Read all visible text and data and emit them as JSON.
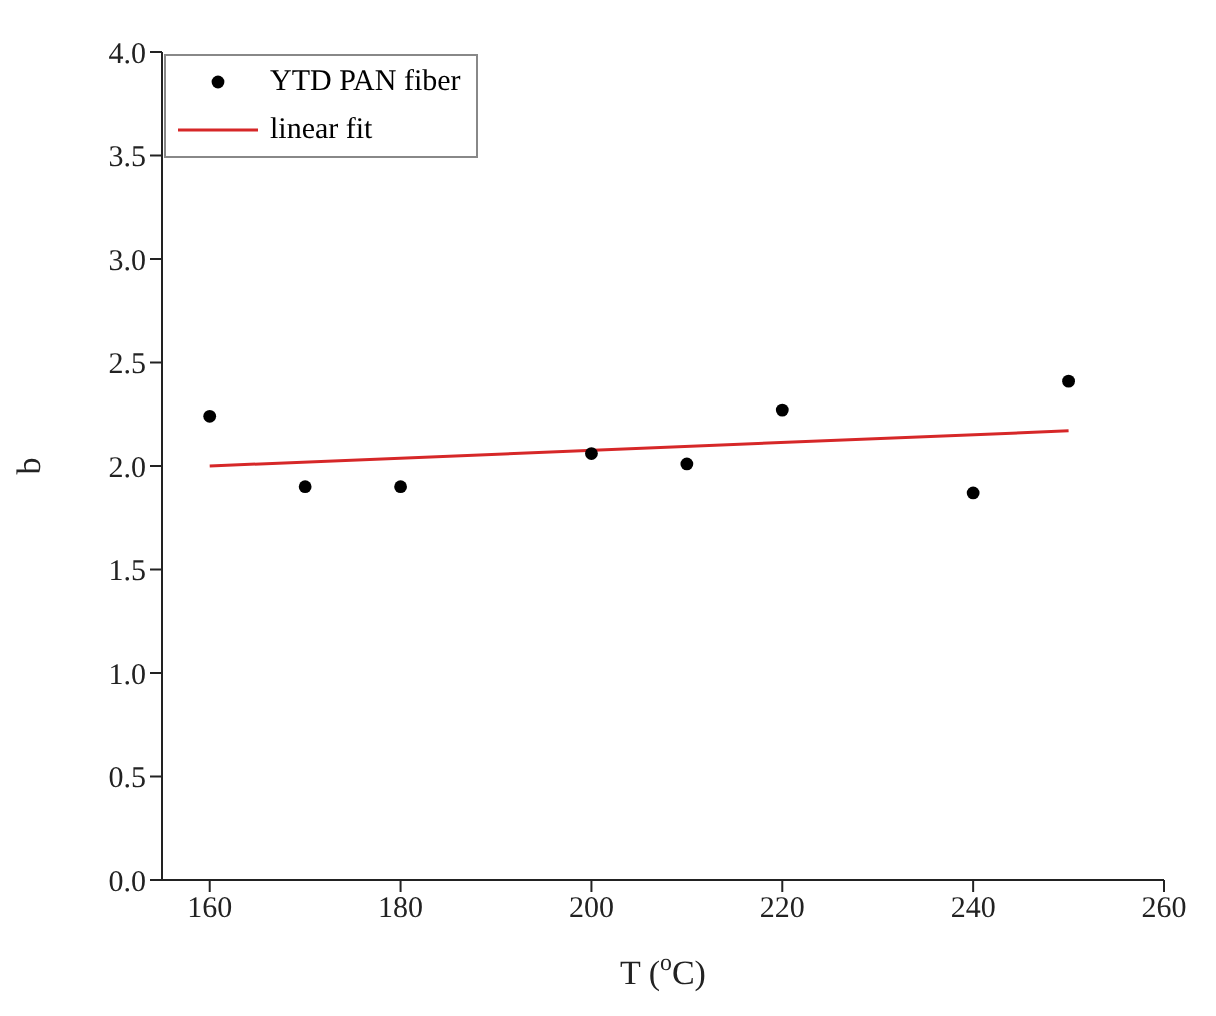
{
  "chart_data": {
    "type": "scatter",
    "xlabel": "T ($^{o}$C)",
    "ylabel": "b",
    "series": [
      {
        "name": "YTD PAN fiber",
        "color": "#000000",
        "marker": "circle",
        "x": [
          160,
          170,
          180,
          200,
          210,
          220,
          240,
          250
        ],
        "values": [
          2.24,
          1.9,
          1.9,
          2.06,
          2.01,
          2.27,
          1.87,
          2.41
        ]
      },
      {
        "name": "linear fit",
        "type": "line",
        "color": "#d62728",
        "line_style": "solid",
        "x": [
          160,
          250
        ],
        "values": [
          2.0,
          2.17
        ]
      }
    ],
    "xlim": [
      155,
      260
    ],
    "xticks": [
      160,
      180,
      200,
      220,
      240,
      260
    ],
    "ylim": [
      0,
      4
    ],
    "yticks": [
      {
        "value": 0,
        "label": "0.0"
      },
      0.5,
      {
        "value": 1,
        "label": "1.0"
      },
      1.5,
      {
        "value": 2,
        "label": "2.0"
      },
      2.5,
      {
        "value": 3,
        "label": "3.0"
      },
      3.5,
      {
        "value": 4,
        "label": "4.0"
      }
    ],
    "legend": "top left"
  }
}
